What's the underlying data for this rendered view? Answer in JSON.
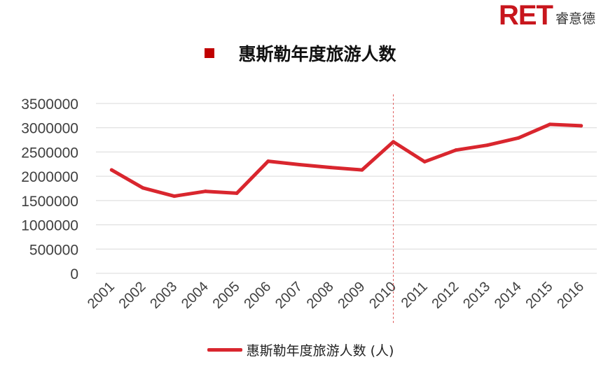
{
  "logo": {
    "mark": "RET",
    "text": "睿意德"
  },
  "chart_data": {
    "type": "line",
    "title": "惠斯勒年度旅游人数",
    "xlabel": "",
    "ylabel": "",
    "categories": [
      "2001",
      "2002",
      "2003",
      "2004",
      "2005",
      "2006",
      "2007",
      "2008",
      "2009",
      "2010",
      "2011",
      "2012",
      "2013",
      "2014",
      "2015",
      "2016"
    ],
    "series": [
      {
        "name": "惠斯勒年度旅游人数 (人)",
        "values": [
          2130000,
          1760000,
          1590000,
          1690000,
          1650000,
          2310000,
          2240000,
          2180000,
          2130000,
          2710000,
          2300000,
          2540000,
          2640000,
          2790000,
          3070000,
          3040000
        ],
        "color": "#d9262e"
      }
    ],
    "ylim": [
      0,
      3500000
    ],
    "yticks": [
      0,
      500000,
      1000000,
      1500000,
      2000000,
      2500000,
      3000000,
      3500000
    ],
    "grid": true,
    "marker_line": {
      "category": "2010",
      "color": "#e06060",
      "style": "dashed"
    },
    "legend_position": "bottom",
    "title_bullet_color": "#c00000"
  }
}
